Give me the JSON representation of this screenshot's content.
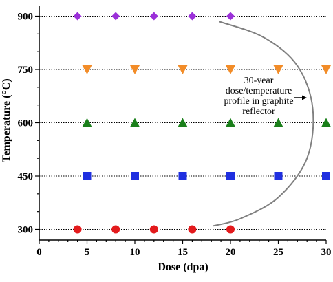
{
  "chart_data": {
    "type": "scatter",
    "xlabel": "Dose (dpa)",
    "ylabel": "Temperature (°C)",
    "xlim": [
      0,
      30
    ],
    "ylim": [
      270,
      930
    ],
    "xticks": [
      0,
      5,
      10,
      15,
      20,
      25,
      30
    ],
    "yticks": [
      300,
      450,
      600,
      750,
      900
    ],
    "grid": "horizontal dotted at y ticks",
    "series": [
      {
        "marker": "circle",
        "color": "#e31a1c",
        "points": [
          [
            4,
            300
          ],
          [
            8,
            300
          ],
          [
            12,
            300
          ],
          [
            16,
            300
          ],
          [
            20,
            300
          ]
        ]
      },
      {
        "marker": "square",
        "color": "#1f2fe0",
        "points": [
          [
            5,
            450
          ],
          [
            10,
            450
          ],
          [
            15,
            450
          ],
          [
            20,
            450
          ],
          [
            25,
            450
          ],
          [
            30,
            450
          ]
        ]
      },
      {
        "marker": "triangle-up",
        "color": "#1a7f1a",
        "points": [
          [
            5,
            600
          ],
          [
            10,
            600
          ],
          [
            15,
            600
          ],
          [
            20,
            600
          ],
          [
            25,
            600
          ],
          [
            30,
            600
          ]
        ]
      },
      {
        "marker": "triangle-down",
        "color": "#f28c28",
        "points": [
          [
            5,
            750
          ],
          [
            10,
            750
          ],
          [
            15,
            750
          ],
          [
            20,
            750
          ],
          [
            25,
            750
          ],
          [
            30,
            750
          ]
        ]
      },
      {
        "marker": "diamond",
        "color": "#9b30d9",
        "points": [
          [
            4,
            900
          ],
          [
            8,
            900
          ],
          [
            12,
            900
          ],
          [
            16,
            900
          ],
          [
            20,
            900
          ]
        ]
      }
    ],
    "annotation": {
      "lines": [
        "30-year",
        "dose/temperature",
        "profile in graphite",
        "reflector"
      ],
      "curve_color": "#808080",
      "curve_points": [
        [
          18.8,
          885
        ],
        [
          23.5,
          840
        ],
        [
          27,
          760
        ],
        [
          28.6,
          640
        ],
        [
          28,
          500
        ],
        [
          25,
          390
        ],
        [
          21,
          330
        ],
        [
          18.2,
          310
        ]
      ]
    }
  }
}
